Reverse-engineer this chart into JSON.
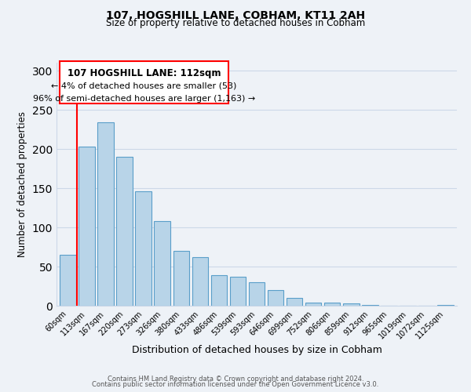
{
  "title1": "107, HOGSHILL LANE, COBHAM, KT11 2AH",
  "title2": "Size of property relative to detached houses in Cobham",
  "xlabel": "Distribution of detached houses by size in Cobham",
  "ylabel": "Number of detached properties",
  "bar_labels": [
    "60sqm",
    "113sqm",
    "167sqm",
    "220sqm",
    "273sqm",
    "326sqm",
    "380sqm",
    "433sqm",
    "486sqm",
    "539sqm",
    "593sqm",
    "646sqm",
    "699sqm",
    "752sqm",
    "806sqm",
    "859sqm",
    "912sqm",
    "965sqm",
    "1019sqm",
    "1072sqm",
    "1125sqm"
  ],
  "bar_values": [
    65,
    203,
    234,
    190,
    146,
    108,
    70,
    62,
    39,
    37,
    30,
    20,
    10,
    4,
    4,
    3,
    1,
    0,
    0,
    0,
    1
  ],
  "bar_color": "#b8d4e8",
  "bar_edge_color": "#5a9ec9",
  "ylim": [
    0,
    310
  ],
  "yticks": [
    0,
    50,
    100,
    150,
    200,
    250,
    300
  ],
  "red_line_index": 1,
  "annotation_title": "107 HOGSHILL LANE: 112sqm",
  "annotation_line1": "← 4% of detached houses are smaller (53)",
  "annotation_line2": "96% of semi-detached houses are larger (1,163) →",
  "footer1": "Contains HM Land Registry data © Crown copyright and database right 2024.",
  "footer2": "Contains public sector information licensed under the Open Government Licence v3.0.",
  "bg_color": "#eef2f7",
  "grid_color": "#ccd8e8"
}
